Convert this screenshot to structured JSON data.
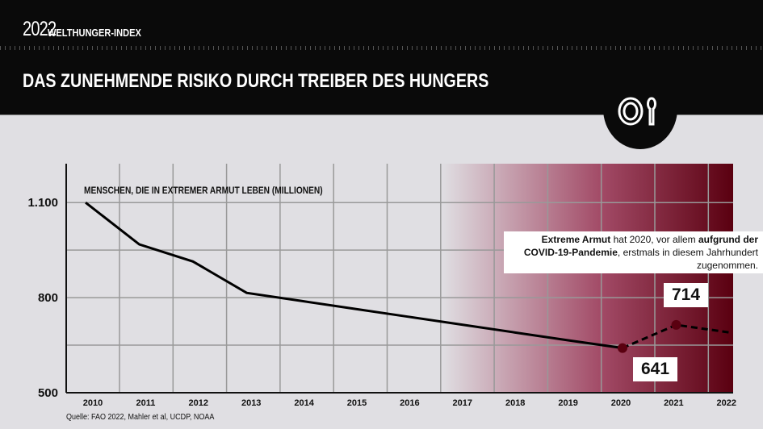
{
  "header": {
    "year": "2022",
    "brand": "WELTHUNGER-INDEX",
    "title": "DAS ZUNEHMENDE RISIKO DURCH TREIBER DES HUNGERS",
    "icon": "plate-spoon-icon"
  },
  "chart_data": {
    "type": "line",
    "title": "MENSCHEN, DIE IN EXTREMER ARMUT LEBEN (MILLIONEN)",
    "x": [
      2010,
      2011,
      2012,
      2013,
      2014,
      2015,
      2016,
      2017,
      2018,
      2019,
      2020,
      2021,
      2022
    ],
    "values": [
      1100,
      968,
      914,
      815,
      790,
      765,
      740,
      715,
      690,
      665,
      641,
      714,
      690
    ],
    "projected_from": 2020,
    "ylim": [
      500,
      1250
    ],
    "yticks": [
      {
        "value": 500,
        "label": "500"
      },
      {
        "value": 800,
        "label": "800"
      },
      {
        "value": 1100,
        "label": "1.100"
      }
    ],
    "grid": true,
    "highlight_gradient": {
      "from": "#e0dfe3",
      "to": "#5a0010"
    },
    "annotations": [
      {
        "year": 2020,
        "label": "641"
      },
      {
        "year": 2021,
        "label": "714"
      }
    ],
    "line_color": "#000000",
    "marker_color": "#5a0010"
  },
  "note": {
    "bold1": "Extreme Armut",
    "t1": " hat 2020, vor allem ",
    "bold2": "aufgrund der COVID-19-Pandemie",
    "t2": ", erstmals in diesem Jahrhundert zugenommen."
  },
  "source": "Quelle: FAO 2022, Mahler et al, UCDP, NOAA"
}
